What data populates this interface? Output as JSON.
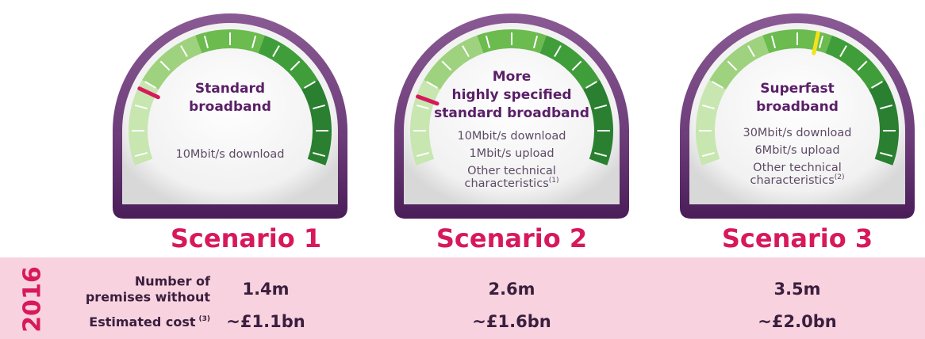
{
  "scenarios": [
    {
      "title": "Scenario 1",
      "gauge_title": [
        "Standard",
        "broadband"
      ],
      "specs": [
        "10Mbit/s download"
      ]
    },
    {
      "title": "Scenario 2",
      "gauge_title": [
        "More",
        "highly specified",
        "standard broadband"
      ],
      "specs": [
        "10Mbit/s download",
        "1Mbit/s upload",
        "Other technical",
        "characteristics"
      ],
      "spec_note": "(1)"
    },
    {
      "title": "Scenario 3",
      "gauge_title": [
        "Superfast",
        "broadband"
      ],
      "specs": [
        "30Mbit/s download",
        "6Mbit/s upload",
        "Other technical",
        "characteristics"
      ],
      "spec_note": "(2)"
    }
  ],
  "table": {
    "year": "2016",
    "row_labels": [
      {
        "lines": [
          "Number of",
          "premises without"
        ]
      },
      {
        "lines": [
          "Estimated cost"
        ],
        "note": "(3)"
      }
    ],
    "rows": [
      [
        "1.4m",
        "2.6m",
        "3.5m"
      ],
      [
        "~£1.1bn",
        "~£1.6bn",
        "~£2.0bn"
      ]
    ]
  }
}
